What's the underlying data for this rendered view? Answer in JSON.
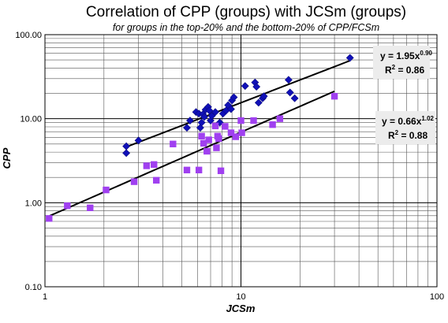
{
  "chart_data": {
    "type": "scatter",
    "title": "Correlation of CPP (groups) with JCSm (groups)",
    "subtitle": "for groups in the top-20% and the bottom-20% of CPP/FCSm",
    "xlabel": "JCSm",
    "ylabel": "CPP",
    "xscale": "log",
    "yscale": "log",
    "xlim": [
      1,
      100
    ],
    "ylim": [
      0.1,
      100
    ],
    "x_ticks": [
      "1",
      "10",
      "100"
    ],
    "y_ticks": [
      "100.00",
      "10.00",
      "1.00",
      "0.10"
    ],
    "grid": true,
    "series": [
      {
        "marker": "diamond",
        "color": "#1010b8",
        "points": [
          [
            2.6,
            4.7
          ],
          [
            2.6,
            3.9
          ],
          [
            3.0,
            5.5
          ],
          [
            5.3,
            7.8
          ],
          [
            5.5,
            9.5
          ],
          [
            5.9,
            12.0
          ],
          [
            6.1,
            11.5
          ],
          [
            6.2,
            7.8
          ],
          [
            6.3,
            9.0
          ],
          [
            6.4,
            11.3
          ],
          [
            6.5,
            10.5
          ],
          [
            6.6,
            12.8
          ],
          [
            6.8,
            13.8
          ],
          [
            6.9,
            12.5
          ],
          [
            7.0,
            9.5
          ],
          [
            7.1,
            10.8
          ],
          [
            7.4,
            12.0
          ],
          [
            7.8,
            9.0
          ],
          [
            8.1,
            11.5
          ],
          [
            8.4,
            12.5
          ],
          [
            8.6,
            14.5
          ],
          [
            8.9,
            13.0
          ],
          [
            9.0,
            16.5
          ],
          [
            9.2,
            18.0
          ],
          [
            10.5,
            24.5
          ],
          [
            11.8,
            27.0
          ],
          [
            12.0,
            24.0
          ],
          [
            12.3,
            15.5
          ],
          [
            12.9,
            17.5
          ],
          [
            13.1,
            18.5
          ],
          [
            17.5,
            29.0
          ],
          [
            17.8,
            20.5
          ],
          [
            18.8,
            17.5
          ],
          [
            36.0,
            53.0
          ]
        ]
      },
      {
        "marker": "square",
        "color": "#a040f0",
        "points": [
          [
            1.05,
            0.65
          ],
          [
            1.3,
            0.92
          ],
          [
            1.7,
            0.87
          ],
          [
            2.05,
            1.42
          ],
          [
            2.85,
            1.78
          ],
          [
            3.3,
            2.75
          ],
          [
            3.6,
            2.85
          ],
          [
            3.7,
            1.85
          ],
          [
            4.5,
            5.0
          ],
          [
            5.3,
            2.45
          ],
          [
            6.1,
            2.45
          ],
          [
            6.3,
            6.2
          ],
          [
            6.45,
            5.1
          ],
          [
            6.7,
            4.1
          ],
          [
            6.85,
            5.6
          ],
          [
            7.4,
            8.2
          ],
          [
            7.5,
            4.5
          ],
          [
            7.6,
            6.2
          ],
          [
            7.7,
            5.8
          ],
          [
            7.9,
            2.4
          ],
          [
            8.3,
            8.1
          ],
          [
            8.9,
            6.8
          ],
          [
            9.4,
            6.1
          ],
          [
            10.0,
            9.5
          ],
          [
            10.1,
            6.8
          ],
          [
            11.6,
            9.5
          ],
          [
            14.5,
            8.5
          ],
          [
            15.8,
            10.0
          ],
          [
            30.0,
            18.5
          ]
        ]
      }
    ],
    "trendlines": [
      {
        "equation": [
          "y = 1.95x",
          "0.90"
        ],
        "r2": [
          "R",
          "2",
          " = 0.86"
        ],
        "coef": 1.95,
        "exp": 0.9,
        "x_range": [
          2.55,
          36.0
        ]
      },
      {
        "equation": [
          "y = 0.66x",
          "1.02"
        ],
        "r2": [
          "R",
          "2",
          " = 0.88"
        ],
        "coef": 0.66,
        "exp": 1.02,
        "x_range": [
          1.05,
          30.0
        ]
      }
    ]
  }
}
